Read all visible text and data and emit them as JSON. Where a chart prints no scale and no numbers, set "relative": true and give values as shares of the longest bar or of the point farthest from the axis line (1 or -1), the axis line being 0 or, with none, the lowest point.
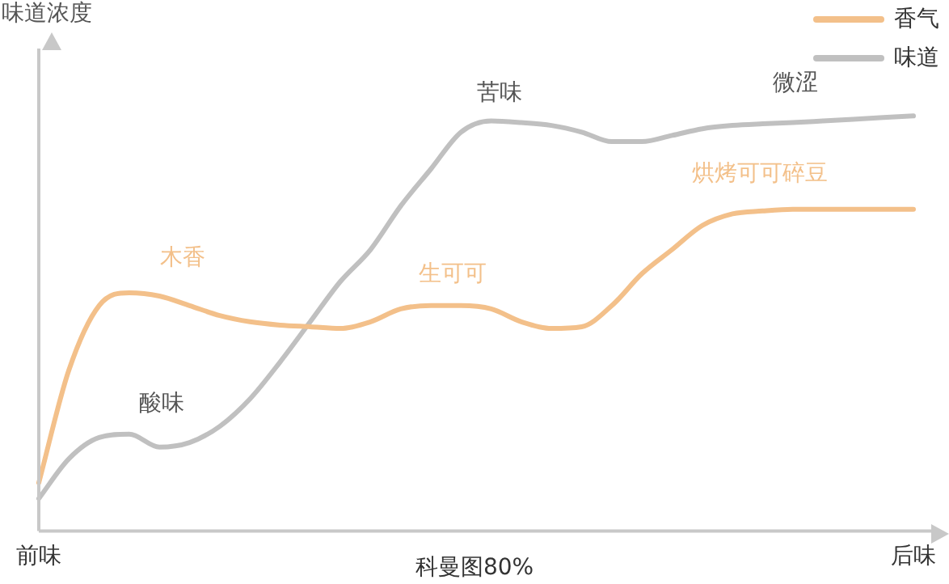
{
  "chart_data": {
    "type": "line",
    "relative": true,
    "xlabel": "科曼图80%",
    "categories": [
      "前味",
      null,
      null,
      null,
      null,
      null,
      null,
      null,
      null,
      null,
      null,
      null,
      null,
      null,
      null,
      null,
      null,
      null,
      null,
      null,
      null,
      null,
      null,
      null,
      null,
      null,
      null,
      null,
      null,
      "后味"
    ],
    "series": [
      {
        "name": "香气",
        "color": "#f3c08a",
        "values": [
          0.116,
          0.388,
          0.543,
          0.574,
          0.566,
          0.543,
          0.519,
          0.504,
          0.496,
          0.492,
          0.488,
          0.504,
          0.535,
          0.543,
          0.543,
          0.535,
          0.504,
          0.488,
          0.492,
          0.543,
          0.62,
          0.678,
          0.736,
          0.764,
          0.771,
          0.775,
          0.775,
          0.775,
          0.775,
          0.775
        ]
      },
      {
        "name": "味道",
        "color": "#c0c0c0",
        "values": [
          0.078,
          0.174,
          0.225,
          0.233,
          0.202,
          0.213,
          0.252,
          0.318,
          0.407,
          0.504,
          0.601,
          0.678,
          0.783,
          0.872,
          0.961,
          0.988,
          0.984,
          0.977,
          0.961,
          0.938,
          0.938,
          0.953,
          0.969,
          0.977,
          0.981,
          0.984,
          0.988,
          0.992,
          0.996,
          1
        ]
      }
    ],
    "annotations": [
      "味道浓度",
      "木香",
      "酸味",
      "生可可",
      "苦味",
      "微涩",
      "烘烤可可碎豆"
    ],
    "legend": "top right",
    "grid": false,
    "marker": "none"
  }
}
